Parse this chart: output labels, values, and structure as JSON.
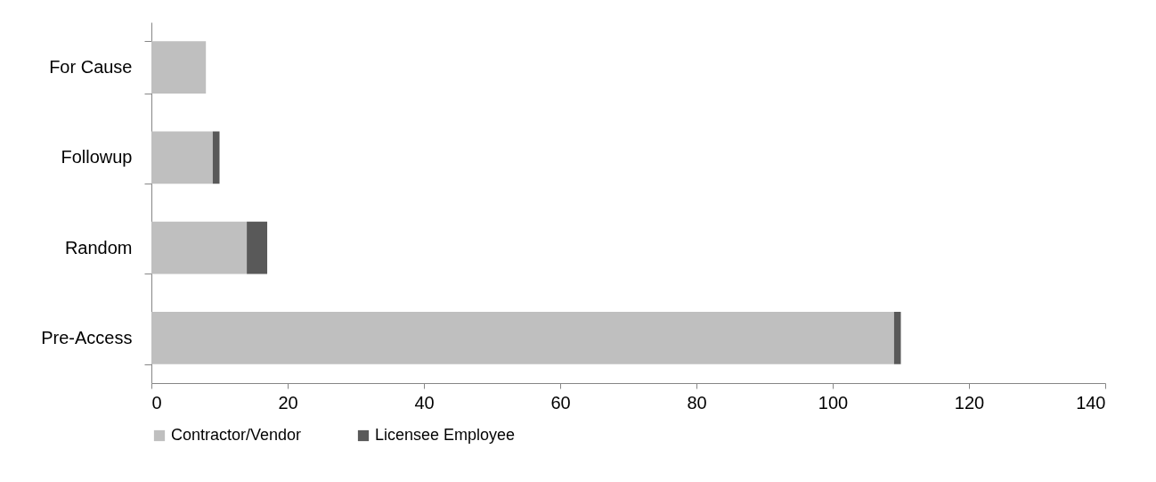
{
  "chart_data": {
    "type": "bar",
    "orientation": "horizontal",
    "stacked": true,
    "categories": [
      "For Cause",
      "Followup",
      "Random",
      "Pre-Access"
    ],
    "series": [
      {
        "name": "Contractor/Vendor",
        "color": "#bfbfbf",
        "values": [
          8,
          9,
          14,
          109
        ]
      },
      {
        "name": "Licensee Employee",
        "color": "#595959",
        "values": [
          0,
          1,
          3,
          1
        ]
      }
    ],
    "xlim": [
      0,
      140
    ],
    "xticks": [
      0,
      20,
      40,
      60,
      80,
      100,
      120,
      140
    ],
    "grid": false,
    "legend": "bottom"
  }
}
